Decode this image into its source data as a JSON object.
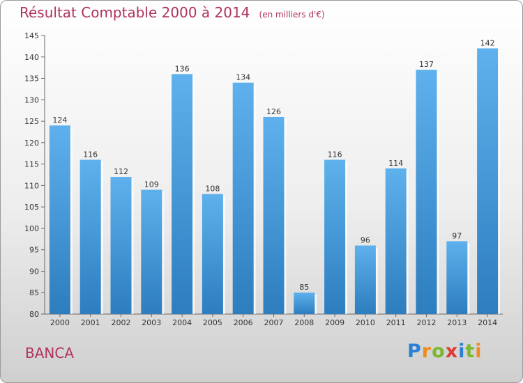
{
  "title": "Résultat Comptable 2000 à 2014",
  "unit": "(en milliers d'€)",
  "commune": "BANCA",
  "logo": [
    "P",
    "r",
    "o",
    "x",
    "i",
    "t",
    "i"
  ],
  "chart_data": {
    "type": "bar",
    "categories": [
      "2000",
      "2001",
      "2002",
      "2003",
      "2004",
      "2005",
      "2006",
      "2007",
      "2008",
      "2009",
      "2010",
      "2011",
      "2012",
      "2013",
      "2014"
    ],
    "values": [
      124,
      116,
      112,
      109,
      136,
      108,
      134,
      126,
      85,
      116,
      96,
      114,
      137,
      97,
      142
    ],
    "ylim": [
      80,
      145
    ],
    "yticks": [
      80,
      85,
      90,
      95,
      100,
      105,
      110,
      115,
      120,
      125,
      130,
      135,
      140,
      145
    ],
    "grid": false,
    "bar_color": "#3a8fd6"
  }
}
